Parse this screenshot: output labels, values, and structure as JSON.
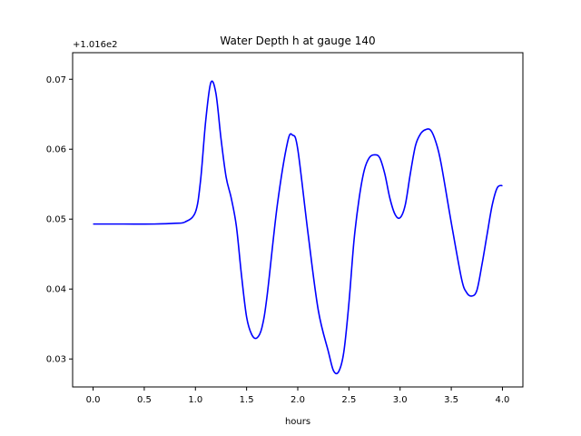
{
  "chart_data": {
    "type": "line",
    "title": "Water Depth h at gauge 140",
    "xlabel": "hours",
    "ylabel": "",
    "offset_label": "+1.016e2",
    "xlim": [
      -0.2,
      4.2
    ],
    "ylim": [
      0.026,
      0.0738
    ],
    "xticks": [
      0.0,
      0.5,
      1.0,
      1.5,
      2.0,
      2.5,
      3.0,
      3.5,
      4.0
    ],
    "xtick_labels": [
      "0.0",
      "0.5",
      "1.0",
      "1.5",
      "2.0",
      "2.5",
      "3.0",
      "3.5",
      "4.0"
    ],
    "yticks": [
      0.03,
      0.04,
      0.05,
      0.06,
      0.07
    ],
    "ytick_labels": [
      "0.03",
      "0.04",
      "0.05",
      "0.06",
      "0.07"
    ],
    "grid": false,
    "series": [
      {
        "color": "#0000ff",
        "x": [
          0.0,
          0.3,
          0.6,
          0.8,
          0.9,
          1.0,
          1.05,
          1.1,
          1.15,
          1.2,
          1.25,
          1.3,
          1.35,
          1.4,
          1.45,
          1.5,
          1.55,
          1.6,
          1.65,
          1.7,
          1.8,
          1.9,
          1.95,
          2.0,
          2.1,
          2.2,
          2.3,
          2.35,
          2.4,
          2.45,
          2.5,
          2.55,
          2.6,
          2.65,
          2.7,
          2.75,
          2.8,
          2.85,
          2.9,
          2.95,
          3.0,
          3.05,
          3.1,
          3.15,
          3.2,
          3.25,
          3.3,
          3.35,
          3.4,
          3.5,
          3.6,
          3.65,
          3.7,
          3.75,
          3.8,
          3.85,
          3.9,
          3.95,
          4.0
        ],
        "y": [
          0.0493,
          0.0493,
          0.0493,
          0.0494,
          0.0496,
          0.051,
          0.0555,
          0.064,
          0.0695,
          0.068,
          0.0615,
          0.056,
          0.053,
          0.049,
          0.042,
          0.036,
          0.0335,
          0.033,
          0.0345,
          0.039,
          0.052,
          0.061,
          0.062,
          0.06,
          0.048,
          0.037,
          0.031,
          0.0283,
          0.0282,
          0.031,
          0.038,
          0.047,
          0.053,
          0.057,
          0.0588,
          0.0592,
          0.0588,
          0.0565,
          0.053,
          0.0507,
          0.0502,
          0.052,
          0.0565,
          0.0605,
          0.0622,
          0.0628,
          0.0627,
          0.061,
          0.058,
          0.0495,
          0.0415,
          0.0395,
          0.039,
          0.0398,
          0.0435,
          0.0478,
          0.052,
          0.0545,
          0.0548
        ]
      }
    ]
  }
}
